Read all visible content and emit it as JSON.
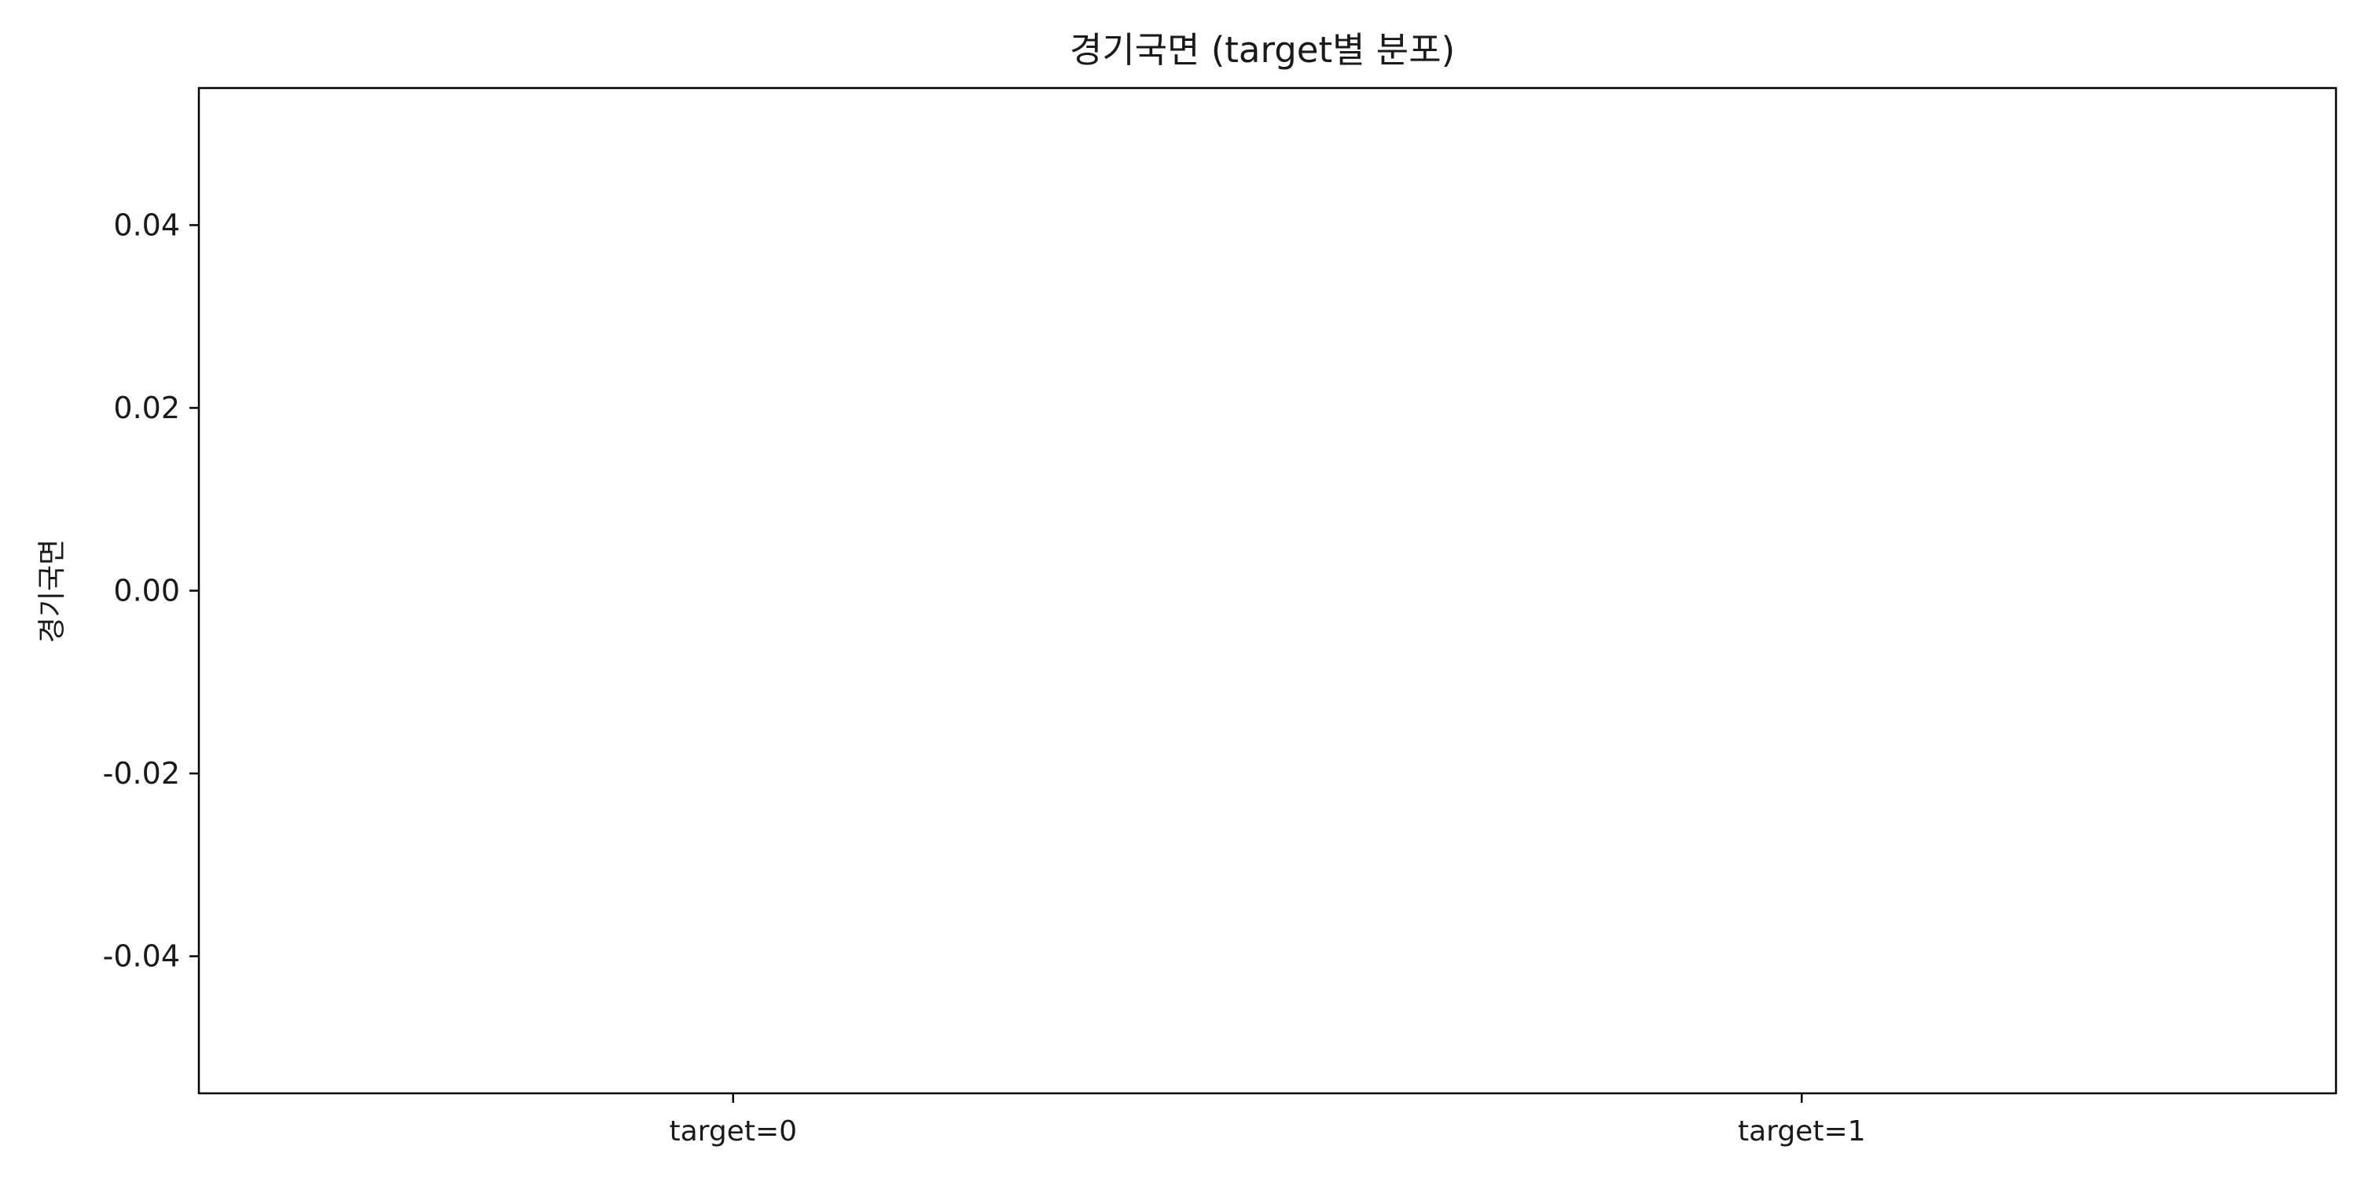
{
  "chart_data": {
    "type": "box",
    "title": "경기국면 (target별 분포)",
    "xlabel": "",
    "ylabel": "경기국면",
    "categories": [
      "target=0",
      "target=1"
    ],
    "series": [
      {
        "category": "target=0",
        "values": []
      },
      {
        "category": "target=1",
        "values": []
      }
    ],
    "ylim": [
      -0.055,
      0.055
    ],
    "yticks": [
      -0.04,
      -0.02,
      0.0,
      0.02,
      0.04
    ],
    "ytick_labels": [
      "-0.04",
      "-0.02",
      "0.00",
      "0.02",
      "0.04"
    ],
    "grid": false,
    "legend": "none"
  }
}
